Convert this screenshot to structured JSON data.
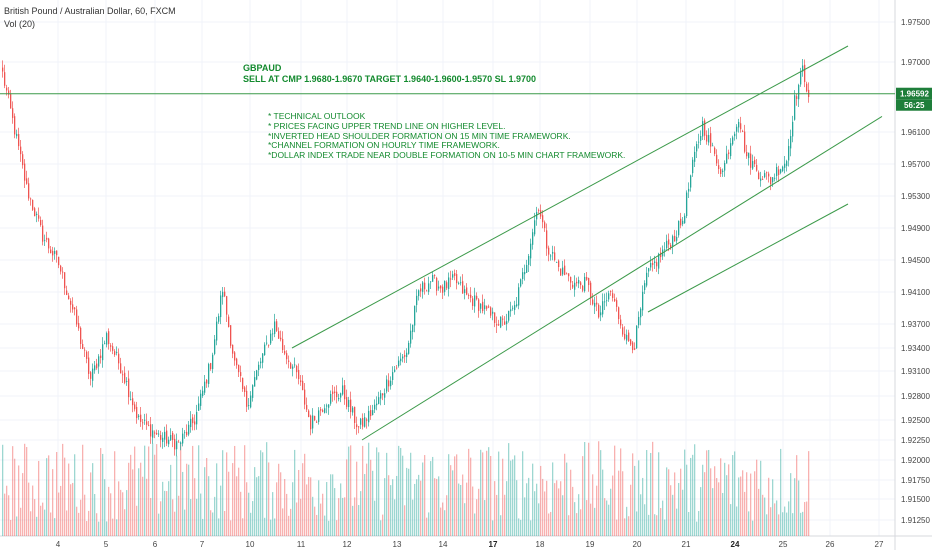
{
  "header": {
    "symbol_line": "British Pound / Australian Dollar, 60, FXCM",
    "volume_line": "Vol (20)"
  },
  "annotation": {
    "title": "GBPAUD",
    "signal": "SELL AT CMP 1.9680-1.9670  TARGET 1.9640-1.9600-1.9570 SL 1.9700",
    "notes": [
      "* TECHNICAL OUTLOOK",
      "* PRICES FACING UPPER TREND LINE ON HIGHER LEVEL.",
      "*INVERTED HEAD SHOULDER FORMATION ON 15 MIN TIME FRAMEWORK.",
      "*CHANNEL FORMATION ON HOURLY TIME FRAMEWORK.",
      "*DOLLAR INDEX TRADE NEAR DOUBLE FORMATION ON 10-5 MIN CHART FRAMEWORK."
    ]
  },
  "price_badge": {
    "price": "1.96592",
    "countdown": "56:25"
  },
  "colors": {
    "up": "#26a69a",
    "down": "#ef5350",
    "trendline": "#3c9a4a",
    "annotation": "#138a2e",
    "badge": "#1e7e3a",
    "grid": "#f0f3fa"
  },
  "chart_data": {
    "type": "candlestick",
    "y_ticks": [
      "1.97500",
      "1.97000",
      "1.96100",
      "1.95700",
      "1.95300",
      "1.94900",
      "1.94500",
      "1.94100",
      "1.93700",
      "1.93400",
      "1.93100",
      "1.92800",
      "1.92500",
      "1.92250",
      "1.92000",
      "1.91750",
      "1.91500",
      "1.91250"
    ],
    "x_ticks": [
      {
        "label": "4",
        "bold": false
      },
      {
        "label": "5",
        "bold": false
      },
      {
        "label": "6",
        "bold": false
      },
      {
        "label": "7",
        "bold": false
      },
      {
        "label": "10",
        "bold": false
      },
      {
        "label": "11",
        "bold": false
      },
      {
        "label": "12",
        "bold": false
      },
      {
        "label": "13",
        "bold": false
      },
      {
        "label": "14",
        "bold": false
      },
      {
        "label": "17",
        "bold": true
      },
      {
        "label": "18",
        "bold": false
      },
      {
        "label": "19",
        "bold": false
      },
      {
        "label": "20",
        "bold": false
      },
      {
        "label": "21",
        "bold": false
      },
      {
        "label": "24",
        "bold": true
      },
      {
        "label": "25",
        "bold": false
      },
      {
        "label": "26",
        "bold": false
      },
      {
        "label": "27",
        "bold": false
      }
    ],
    "anchors": [
      [
        0,
        1.9685
      ],
      [
        5,
        1.9625
      ],
      [
        12,
        1.954
      ],
      [
        20,
        1.948
      ],
      [
        28,
        1.9445
      ],
      [
        36,
        1.938
      ],
      [
        44,
        1.93
      ],
      [
        52,
        1.9355
      ],
      [
        60,
        1.931
      ],
      [
        68,
        1.925
      ],
      [
        78,
        1.923
      ],
      [
        88,
        1.922
      ],
      [
        96,
        1.925
      ],
      [
        104,
        1.932
      ],
      [
        110,
        1.9415
      ],
      [
        116,
        1.932
      ],
      [
        122,
        1.927
      ],
      [
        130,
        1.933
      ],
      [
        136,
        1.937
      ],
      [
        140,
        1.934
      ],
      [
        148,
        1.93
      ],
      [
        154,
        1.9245
      ],
      [
        162,
        1.9275
      ],
      [
        170,
        1.9285
      ],
      [
        178,
        1.924
      ],
      [
        186,
        1.9265
      ],
      [
        194,
        1.9305
      ],
      [
        202,
        1.9335
      ],
      [
        208,
        1.941
      ],
      [
        214,
        1.9425
      ],
      [
        220,
        1.9415
      ],
      [
        226,
        1.9425
      ],
      [
        232,
        1.9405
      ],
      [
        238,
        1.9395
      ],
      [
        244,
        1.938
      ],
      [
        250,
        1.937
      ],
      [
        256,
        1.939
      ],
      [
        262,
        1.945
      ],
      [
        266,
        1.95
      ],
      [
        268,
        1.952
      ],
      [
        272,
        1.947
      ],
      [
        278,
        1.944
      ],
      [
        286,
        1.942
      ],
      [
        292,
        1.942
      ],
      [
        298,
        1.938
      ],
      [
        304,
        1.941
      ],
      [
        308,
        1.938
      ],
      [
        312,
        1.935
      ],
      [
        316,
        1.9345
      ],
      [
        322,
        1.943
      ],
      [
        330,
        1.946
      ],
      [
        336,
        1.948
      ],
      [
        340,
        1.95
      ],
      [
        346,
        1.958
      ],
      [
        350,
        1.962
      ],
      [
        356,
        1.958
      ],
      [
        360,
        1.956
      ],
      [
        364,
        1.96
      ],
      [
        368,
        1.963
      ],
      [
        372,
        1.958
      ],
      [
        378,
        1.956
      ],
      [
        384,
        1.955
      ],
      [
        388,
        1.9565
      ],
      [
        392,
        1.9575
      ],
      [
        396,
        1.965
      ],
      [
        400,
        1.969
      ],
      [
        403,
        1.966
      ]
    ],
    "volume_ylim": [
      0,
      1
    ],
    "trendlines": [
      {
        "name": "upper channel",
        "from": [
          145,
          1.934
        ],
        "to": [
          423,
          1.972
        ]
      },
      {
        "name": "middle support",
        "from": [
          180,
          1.9225
        ],
        "to": [
          440,
          1.963
        ]
      },
      {
        "name": "lower support",
        "from": [
          323,
          1.9385
        ],
        "to": [
          423,
          1.952
        ]
      }
    ],
    "horizontal_lines": [
      1.96592
    ],
    "bars": 404,
    "ylim": [
      1.91,
      1.977
    ],
    "xlim": [
      0,
      452
    ]
  }
}
